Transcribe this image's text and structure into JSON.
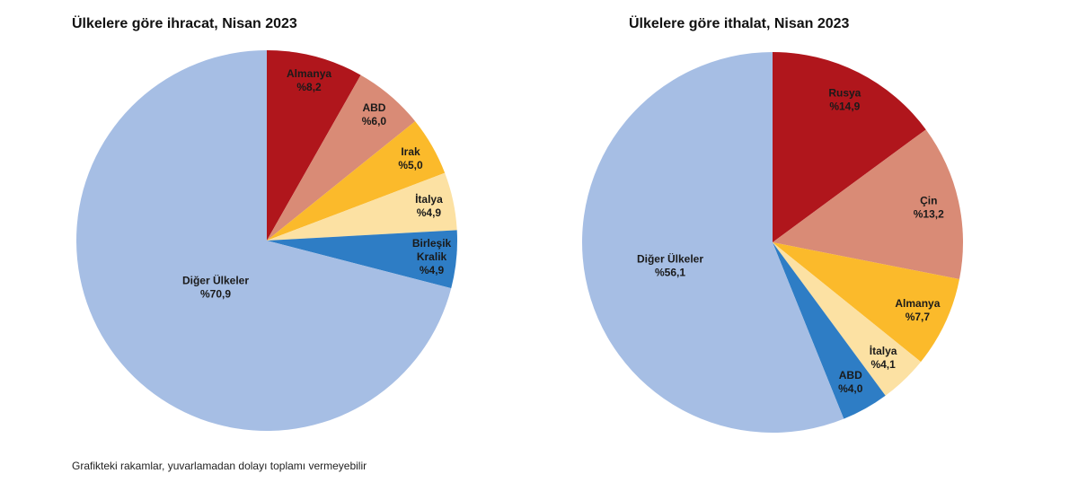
{
  "chart_data": [
    {
      "type": "pie",
      "title": "Ülkelere göre ihracat, Nisan 2023",
      "slices": [
        {
          "label": [
            "Almanya"
          ],
          "value": 8.2,
          "text": "%8,2",
          "color": "#B0161C"
        },
        {
          "label": [
            "ABD"
          ],
          "value": 6.0,
          "text": "%6,0",
          "color": "#D98B76"
        },
        {
          "label": [
            "Irak"
          ],
          "value": 5.0,
          "text": "%5,0",
          "color": "#FBBA2B"
        },
        {
          "label": [
            "İtalya"
          ],
          "value": 4.9,
          "text": "%4,9",
          "color": "#FCE1A3"
        },
        {
          "label": [
            "Birleşik",
            "Kralik"
          ],
          "value": 4.9,
          "text": "%4,9",
          "color": "#2E7DC5"
        },
        {
          "label": [
            "Diğer Ülkeler"
          ],
          "value": 70.9,
          "text": "%70,9",
          "color": "#A6BEE4"
        }
      ]
    },
    {
      "type": "pie",
      "title": "Ülkelere göre ithalat, Nisan 2023",
      "slices": [
        {
          "label": [
            "Rusya"
          ],
          "value": 14.9,
          "text": "%14,9",
          "color": "#B0161C"
        },
        {
          "label": [
            "Çin"
          ],
          "value": 13.2,
          "text": "%13,2",
          "color": "#D98B76"
        },
        {
          "label": [
            "Almanya"
          ],
          "value": 7.7,
          "text": "%7,7",
          "color": "#FBBA2B"
        },
        {
          "label": [
            "İtalya"
          ],
          "value": 4.1,
          "text": "%4,1",
          "color": "#FCE1A3"
        },
        {
          "label": [
            "ABD"
          ],
          "value": 4.0,
          "text": "%4,0",
          "color": "#2E7DC5"
        },
        {
          "label": [
            "Diğer Ülkeler"
          ],
          "value": 56.1,
          "text": "%56,1",
          "color": "#A6BEE4"
        }
      ]
    }
  ],
  "footnote": "Grafikteki rakamlar, yuvarlamadan dolayı toplamı vermeyebilir"
}
